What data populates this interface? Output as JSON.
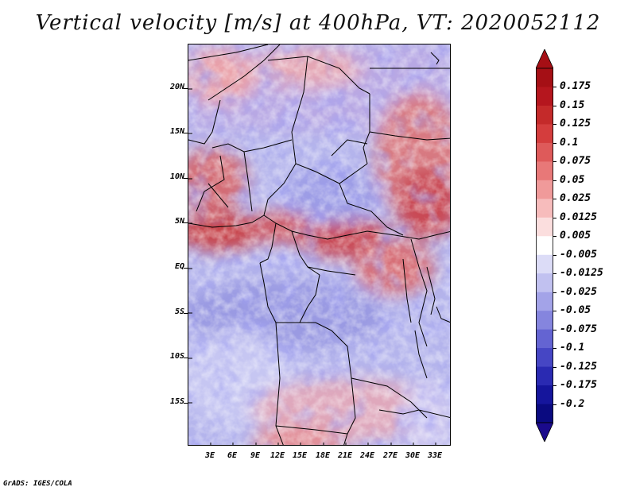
{
  "title": "Vertical velocity [m/s] at 400hPa, VT: 2020052112",
  "footer": "GrADS: IGES/COLA",
  "lat_labels": [
    "20N",
    "15N",
    "10N",
    "5N",
    "EQ",
    "5S",
    "10S",
    "15S"
  ],
  "lon_labels": [
    "3E",
    "6E",
    "9E",
    "12E",
    "15E",
    "18E",
    "21E",
    "24E",
    "27E",
    "30E",
    "33E"
  ],
  "colorbar": {
    "labels": [
      "0.175",
      "0.15",
      "0.125",
      "0.1",
      "0.075",
      "0.05",
      "0.025",
      "0.0125",
      "0.005",
      "-0.005",
      "-0.0125",
      "-0.025",
      "-0.05",
      "-0.075",
      "-0.1",
      "-0.125",
      "-0.175",
      "-0.2"
    ],
    "colors": [
      "#a50f15",
      "#b5161e",
      "#c42a2a",
      "#d43d3d",
      "#de5a5a",
      "#e87878",
      "#f09a9a",
      "#f7bcbc",
      "#fbdede",
      "#ffffff",
      "#dcdcf7",
      "#c1c1f0",
      "#a3a3e8",
      "#8585de",
      "#6464d2",
      "#4646c4",
      "#2a2ab2",
      "#15159c",
      "#0a0a80"
    ],
    "top_color": "#a50f15",
    "bottom_color": "#1a0a8c"
  }
}
